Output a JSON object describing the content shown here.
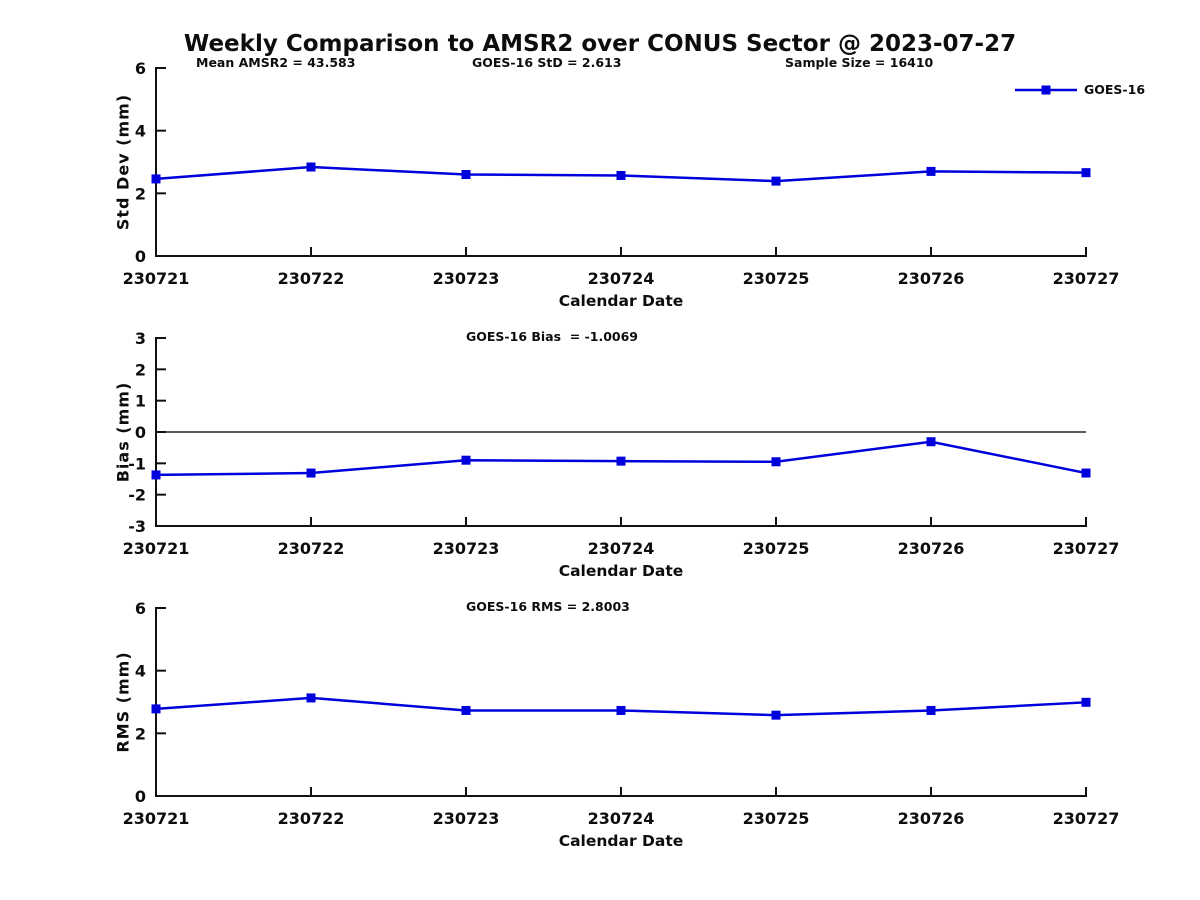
{
  "title": "Weekly Comparison to AMSR2 over CONUS Sector @ 2023-07-27",
  "legend": {
    "label": "GOES-16"
  },
  "colors": {
    "series_line": "#0000dd",
    "axis": "#111111",
    "zero_line": "#222222",
    "text": "#0d0d0d",
    "background": "#ffffff"
  },
  "chart_data": [
    {
      "type": "line",
      "name": "std-dev-panel",
      "annotations": [
        "Mean AMSR2 = 43.583",
        "GOES-16 StD = 2.613",
        "Sample Size = 16410"
      ],
      "xlabel": "Calendar Date",
      "ylabel": "Std Dev (mm)",
      "categories": [
        "230721",
        "230722",
        "230723",
        "230724",
        "230725",
        "230726",
        "230727"
      ],
      "series": [
        {
          "name": "GOES-16",
          "values": [
            2.46,
            2.84,
            2.6,
            2.57,
            2.39,
            2.7,
            2.66
          ]
        }
      ],
      "ylim": [
        0,
        6
      ],
      "yticks": [
        0,
        2,
        4,
        6
      ],
      "grid": false,
      "zero_line": false,
      "legend_position": "top-right"
    },
    {
      "type": "line",
      "name": "bias-panel",
      "annotations": [
        "GOES-16 Bias  = -1.0069"
      ],
      "xlabel": "Calendar Date",
      "ylabel": "Bias (mm)",
      "categories": [
        "230721",
        "230722",
        "230723",
        "230724",
        "230725",
        "230726",
        "230727"
      ],
      "series": [
        {
          "name": "GOES-16",
          "values": [
            -1.37,
            -1.31,
            -0.9,
            -0.93,
            -0.95,
            -0.31,
            -1.31
          ]
        }
      ],
      "ylim": [
        -3,
        3
      ],
      "yticks": [
        -3,
        -2,
        -1,
        0,
        1,
        2,
        3
      ],
      "grid": false,
      "zero_line": true,
      "legend_position": "none"
    },
    {
      "type": "line",
      "name": "rms-panel",
      "annotations": [
        "GOES-16 RMS = 2.8003"
      ],
      "xlabel": "Calendar Date",
      "ylabel": "RMS (mm)",
      "categories": [
        "230721",
        "230722",
        "230723",
        "230724",
        "230725",
        "230726",
        "230727"
      ],
      "series": [
        {
          "name": "GOES-16",
          "values": [
            2.78,
            3.13,
            2.73,
            2.73,
            2.58,
            2.73,
            2.99
          ]
        }
      ],
      "ylim": [
        0,
        6
      ],
      "yticks": [
        0,
        2,
        4,
        6
      ],
      "grid": false,
      "zero_line": false,
      "legend_position": "none"
    }
  ]
}
